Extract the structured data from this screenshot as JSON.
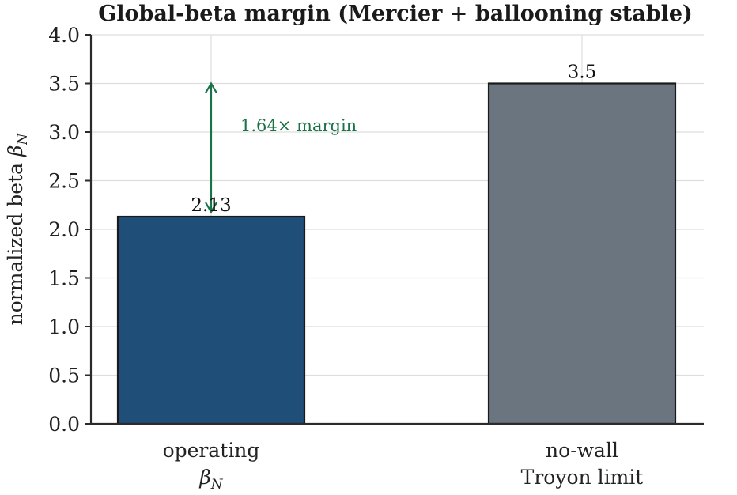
{
  "chart_data": {
    "type": "bar",
    "title": "Global-beta margin (Mercier + ballooning stable)",
    "ylabel": "normalized beta",
    "ylabel_symbol": "β",
    "ylabel_subscript": "N",
    "ylim": [
      0.0,
      4.0
    ],
    "yticks": [
      "0.0",
      "0.5",
      "1.0",
      "1.5",
      "2.0",
      "2.5",
      "3.0",
      "3.5",
      "4.0"
    ],
    "grid": true,
    "categories": [
      {
        "lines": [
          "operating"
        ],
        "symbol": "β",
        "subscript": "N"
      },
      {
        "lines": [
          "no-wall",
          "Troyon limit"
        ]
      }
    ],
    "values": [
      2.13,
      3.5
    ],
    "data_labels": [
      "2.13",
      "3.5"
    ],
    "colors": [
      "#1f4e79",
      "#6b7580"
    ],
    "edge_color": "#1a1a1a",
    "annotation": {
      "text": "1.64× margin",
      "color": "#1a7346",
      "from_value": 2.13,
      "to_value": 3.5
    }
  }
}
